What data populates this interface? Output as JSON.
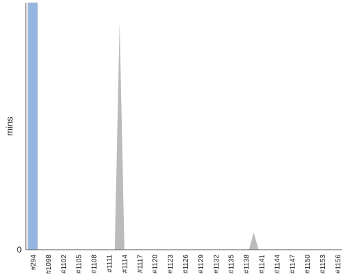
{
  "chart_data": {
    "type": "area",
    "ylabel": "mins",
    "y_tick_labels": [
      "0"
    ],
    "categories": [
      "#294",
      "#1098",
      "#1102",
      "#1105",
      "#1108",
      "#1111",
      "#1114",
      "#1117",
      "#1120",
      "#1123",
      "#1126",
      "#1129",
      "#1132",
      "#1135",
      "#1138",
      "#1141",
      "#1144",
      "#1147",
      "#1150",
      "#1153",
      "#1156"
    ],
    "ylim": [
      0,
      100
    ],
    "grid": false,
    "legend": "none",
    "bar": {
      "category": "#294",
      "value": 100,
      "color": "#94b5e0"
    },
    "series": [
      {
        "color": "#bbbbbb",
        "peaks": [
          {
            "x_index": 5.7,
            "value": 92
          },
          {
            "x_index": 14.5,
            "value": 7
          }
        ]
      }
    ]
  }
}
